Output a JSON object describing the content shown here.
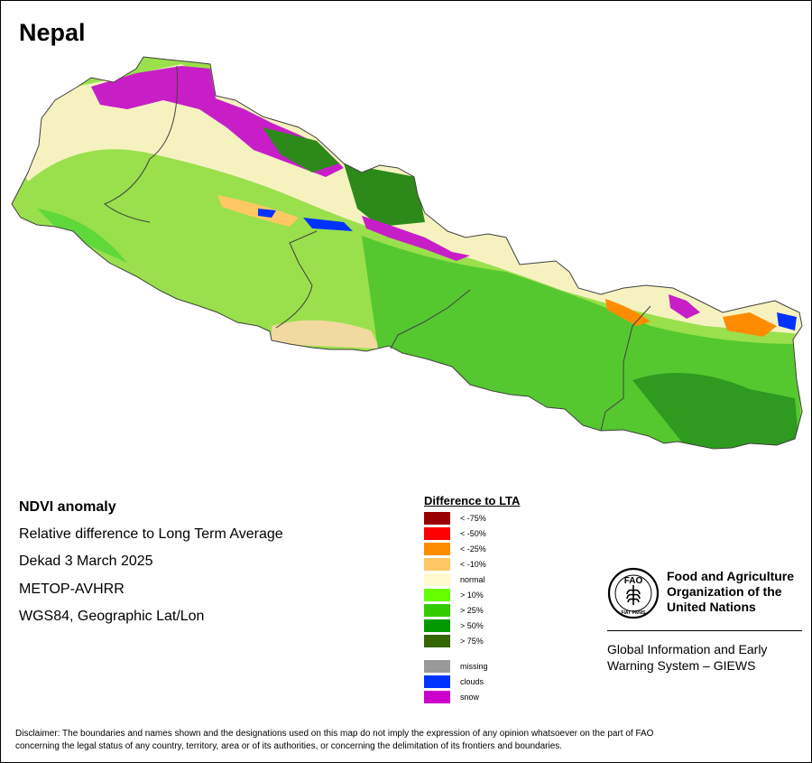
{
  "map": {
    "title": "Nepal",
    "info": {
      "title": "NDVI anomaly",
      "subtitle": "Relative difference to Long Term Average",
      "period": "Dekad 3 March 2025",
      "sensor": "METOP-AVHRR",
      "projection": "WGS84, Geographic Lat/Lon"
    },
    "colors": {
      "country_base": "#99e04c",
      "normal": "#fdfacb",
      "boundary": "#404040"
    }
  },
  "legend": {
    "title": "Difference to LTA",
    "items": [
      {
        "label": "< -75%",
        "color": "#990000"
      },
      {
        "label": "< -50%",
        "color": "#ff0000"
      },
      {
        "label": "< -25%",
        "color": "#ff8c00"
      },
      {
        "label": "< -10%",
        "color": "#ffc864"
      },
      {
        "label": "normal",
        "color": "#fffacd"
      },
      {
        "label": "> 10%",
        "color": "#66ff00"
      },
      {
        "label": "> 25%",
        "color": "#33cc00"
      },
      {
        "label": "> 50%",
        "color": "#009900"
      },
      {
        "label": "> 75%",
        "color": "#336600"
      }
    ],
    "extra_items": [
      {
        "label": "missing",
        "color": "#999999"
      },
      {
        "label": "clouds",
        "color": "#0033ff"
      },
      {
        "label": "snow",
        "color": "#cc00cc"
      }
    ]
  },
  "fao": {
    "name_line1": "Food and Agriculture",
    "name_line2": "Organization of the",
    "name_line3": "United Nations",
    "logo_letters": "FAO",
    "logo_motto": "FIAT PANIS",
    "giews_line1": "Global Information and Early",
    "giews_line2": "Warning System – GIEWS"
  },
  "disclaimer": {
    "line1": "Disclaimer: The boundaries and names shown and the designations used on this map do not imply the expression of any opinion whatsoever on the part of FAO",
    "line2": "concerning the legal status of any country, territory, area or of its authorities, or concerning the delimitation of its frontiers and boundaries."
  }
}
